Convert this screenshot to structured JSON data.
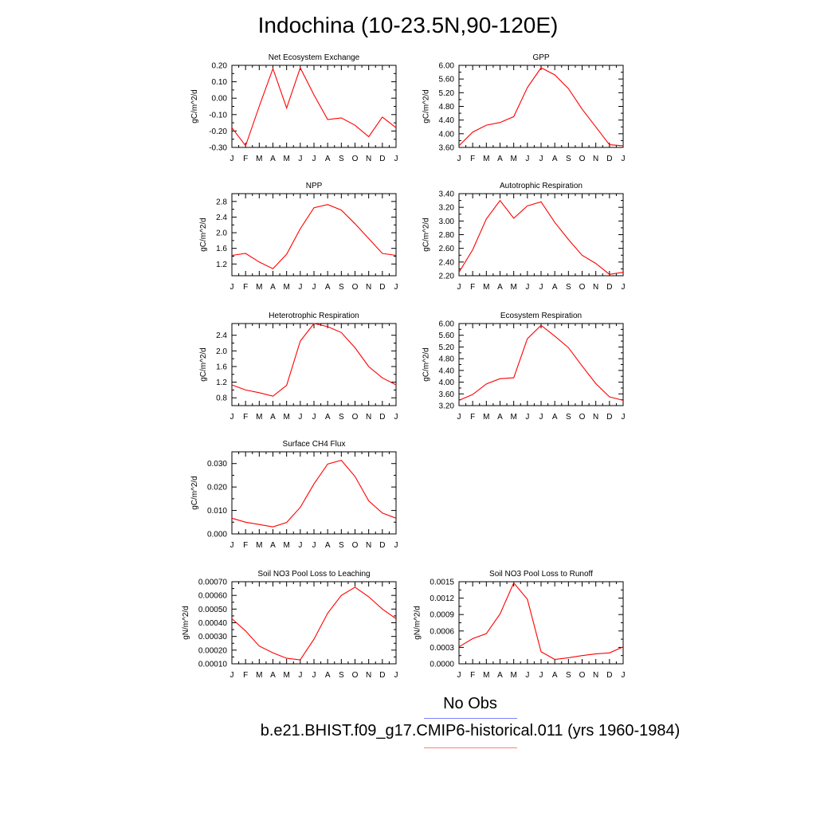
{
  "figure": {
    "title": "Indochina (10-23.5N,90-120E)",
    "legend": {
      "obs_label": "No Obs",
      "model_label": "b.e21.BHIST.f09_g17.CMIP6-historical.011 (yrs 1960-1984)",
      "obs_color": "#7f7fff",
      "model_color": "#ff8080"
    },
    "line_color": "#ff0000"
  },
  "chart_data": [
    {
      "id": "nee",
      "type": "line",
      "title": "Net Ecosystem Exchange",
      "ylabel": "gC/m^2/d",
      "categories": [
        "J",
        "F",
        "M",
        "A",
        "M",
        "J",
        "J",
        "A",
        "S",
        "O",
        "N",
        "D",
        "J"
      ],
      "ylim": [
        -0.3,
        0.2
      ],
      "yticks": [
        -0.3,
        -0.2,
        -0.1,
        0.0,
        0.1,
        0.2
      ],
      "ytick_labels": [
        "-0.30",
        "-0.20",
        "-0.10",
        "0.00",
        "0.10",
        "0.20"
      ],
      "values": [
        -0.18,
        -0.29,
        -0.05,
        0.18,
        -0.06,
        0.185,
        0.02,
        -0.13,
        -0.12,
        -0.165,
        -0.235,
        -0.115,
        -0.18
      ]
    },
    {
      "id": "gpp",
      "type": "line",
      "title": "GPP",
      "ylabel": "gC/m^2/d",
      "categories": [
        "J",
        "F",
        "M",
        "A",
        "M",
        "J",
        "J",
        "A",
        "S",
        "O",
        "N",
        "D",
        "J"
      ],
      "ylim": [
        3.6,
        6.0
      ],
      "yticks": [
        3.6,
        4.0,
        4.4,
        4.8,
        5.2,
        5.6,
        6.0
      ],
      "ytick_labels": [
        "3.60",
        "4.00",
        "4.40",
        "4.80",
        "5.20",
        "5.60",
        "6.00"
      ],
      "values": [
        3.65,
        4.05,
        4.25,
        4.33,
        4.5,
        5.35,
        5.93,
        5.72,
        5.32,
        4.72,
        4.2,
        3.68,
        3.65
      ]
    },
    {
      "id": "npp",
      "type": "line",
      "title": "NPP",
      "ylabel": "gC/m^2/d",
      "categories": [
        "J",
        "F",
        "M",
        "A",
        "M",
        "J",
        "J",
        "A",
        "S",
        "O",
        "N",
        "D",
        "J"
      ],
      "ylim": [
        0.9,
        3.0
      ],
      "yticks": [
        1.2,
        1.6,
        2.0,
        2.4,
        2.8
      ],
      "ytick_labels": [
        "1.2",
        "1.6",
        "2.0",
        "2.4",
        "2.8"
      ],
      "values": [
        1.42,
        1.47,
        1.25,
        1.08,
        1.45,
        2.1,
        2.64,
        2.72,
        2.58,
        2.23,
        1.85,
        1.47,
        1.42
      ]
    },
    {
      "id": "ar",
      "type": "line",
      "title": "Autotrophic Respiration",
      "ylabel": "gC/m^2/d",
      "categories": [
        "J",
        "F",
        "M",
        "A",
        "M",
        "J",
        "J",
        "A",
        "S",
        "O",
        "N",
        "D",
        "J"
      ],
      "ylim": [
        2.2,
        3.4
      ],
      "yticks": [
        2.2,
        2.4,
        2.6,
        2.8,
        3.0,
        3.2,
        3.4
      ],
      "ytick_labels": [
        "2.20",
        "2.40",
        "2.60",
        "2.80",
        "3.00",
        "3.20",
        "3.40"
      ],
      "values": [
        2.25,
        2.58,
        3.03,
        3.3,
        3.04,
        3.22,
        3.28,
        2.98,
        2.73,
        2.5,
        2.38,
        2.22,
        2.25
      ]
    },
    {
      "id": "hr",
      "type": "line",
      "title": "Heterotrophic Respiration",
      "ylabel": "gC/m^2/d",
      "categories": [
        "J",
        "F",
        "M",
        "A",
        "M",
        "J",
        "J",
        "A",
        "S",
        "O",
        "N",
        "D",
        "J"
      ],
      "ylim": [
        0.6,
        2.7
      ],
      "yticks": [
        0.8,
        1.2,
        1.6,
        2.0,
        2.4
      ],
      "ytick_labels": [
        "0.8",
        "1.2",
        "1.6",
        "2.0",
        "2.4"
      ],
      "values": [
        1.13,
        1.0,
        0.93,
        0.84,
        1.12,
        2.25,
        2.7,
        2.62,
        2.47,
        2.08,
        1.6,
        1.31,
        1.13
      ]
    },
    {
      "id": "er",
      "type": "line",
      "title": "Ecosystem Respiration",
      "ylabel": "gC/m^2/d",
      "categories": [
        "J",
        "F",
        "M",
        "A",
        "M",
        "J",
        "J",
        "A",
        "S",
        "O",
        "N",
        "D",
        "J"
      ],
      "ylim": [
        3.2,
        6.0
      ],
      "yticks": [
        3.2,
        3.6,
        4.0,
        4.4,
        4.8,
        5.2,
        5.6,
        6.0
      ],
      "ytick_labels": [
        "3.20",
        "3.60",
        "4.00",
        "4.40",
        "4.80",
        "5.20",
        "5.60",
        "6.00"
      ],
      "values": [
        3.38,
        3.58,
        3.94,
        4.12,
        4.15,
        5.48,
        5.94,
        5.57,
        5.18,
        4.55,
        3.95,
        3.5,
        3.38
      ]
    },
    {
      "id": "ch4",
      "type": "line",
      "title": "Surface CH4 Flux",
      "ylabel": "gC/m^2/d",
      "categories": [
        "J",
        "F",
        "M",
        "A",
        "M",
        "J",
        "J",
        "A",
        "S",
        "O",
        "N",
        "D",
        "J"
      ],
      "ylim": [
        0.0,
        0.035
      ],
      "yticks": [
        0.0,
        0.01,
        0.02,
        0.03
      ],
      "ytick_labels": [
        "0.000",
        "0.010",
        "0.020",
        "0.030"
      ],
      "values": [
        0.0067,
        0.005,
        0.004,
        0.003,
        0.0049,
        0.0113,
        0.0213,
        0.0298,
        0.0314,
        0.0245,
        0.0141,
        0.0089,
        0.0067
      ]
    },
    {
      "id": "leach",
      "type": "line",
      "title": "Soil NO3 Pool Loss to Leaching",
      "ylabel": "gN/m^2/d",
      "categories": [
        "J",
        "F",
        "M",
        "A",
        "M",
        "J",
        "J",
        "A",
        "S",
        "O",
        "N",
        "D",
        "J"
      ],
      "ylim": [
        0.0001,
        0.0007
      ],
      "yticks": [
        0.0001,
        0.0002,
        0.0003,
        0.0004,
        0.0005,
        0.0006,
        0.0007
      ],
      "ytick_labels": [
        "0.00010",
        "0.00020",
        "0.00030",
        "0.00040",
        "0.00050",
        "0.00060",
        "0.00070"
      ],
      "values": [
        0.00043,
        0.00034,
        0.00023,
        0.00018,
        0.00014,
        0.000129,
        0.00028,
        0.00047,
        0.0006,
        0.00066,
        0.00059,
        0.0005,
        0.00043
      ]
    },
    {
      "id": "runoff",
      "type": "line",
      "title": "Soil NO3 Pool Loss to Runoff",
      "ylabel": "gN/m^2/d",
      "categories": [
        "J",
        "F",
        "M",
        "A",
        "M",
        "J",
        "J",
        "A",
        "S",
        "O",
        "N",
        "D",
        "J"
      ],
      "ylim": [
        0.0,
        0.0015
      ],
      "yticks": [
        0.0,
        0.0003,
        0.0006,
        0.0009,
        0.0012,
        0.0015
      ],
      "ytick_labels": [
        "0.0000",
        "0.0003",
        "0.0006",
        "0.0009",
        "0.0012",
        "0.0015"
      ],
      "values": [
        0.00031,
        0.00046,
        0.00055,
        0.00091,
        0.00148,
        0.00118,
        0.00022,
        8e-05,
        0.00011,
        0.00015,
        0.00018,
        0.0002,
        0.00031
      ]
    }
  ]
}
